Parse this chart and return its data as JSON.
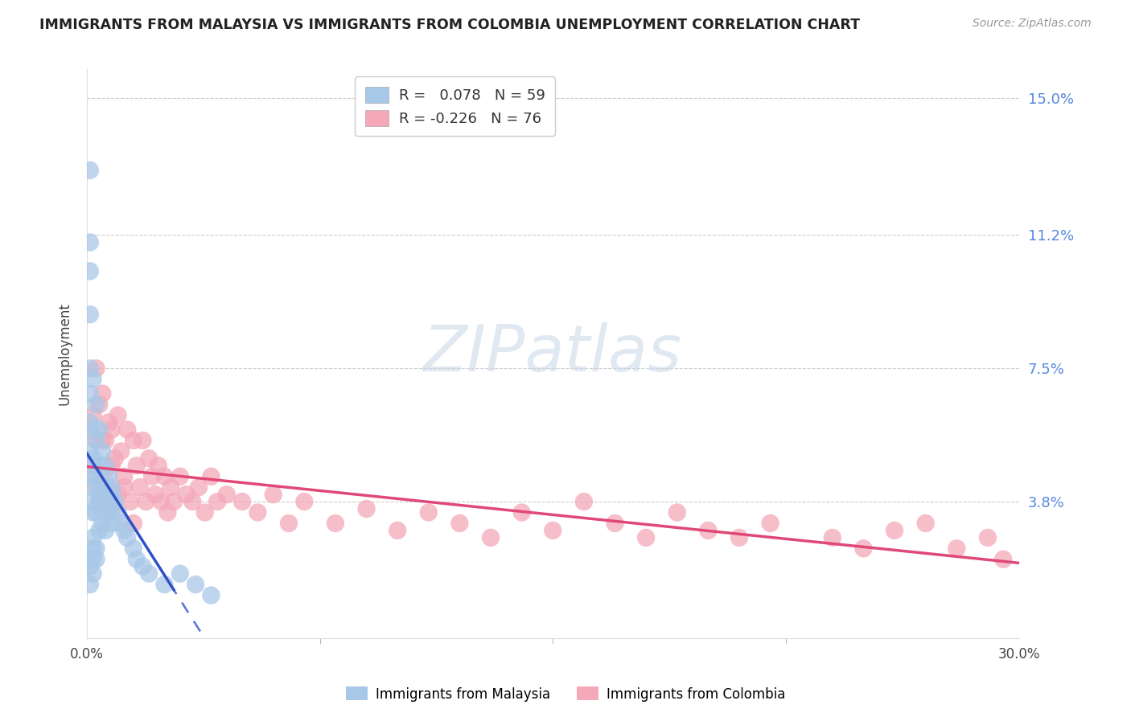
{
  "title": "IMMIGRANTS FROM MALAYSIA VS IMMIGRANTS FROM COLOMBIA UNEMPLOYMENT CORRELATION CHART",
  "source": "Source: ZipAtlas.com",
  "ylabel": "Unemployment",
  "x_min": 0.0,
  "x_max": 0.3,
  "y_min": 0.0,
  "y_max": 0.158,
  "x_tick_labels": [
    "0.0%",
    "30.0%"
  ],
  "y_tick_labels": [
    "15.0%",
    "11.2%",
    "7.5%",
    "3.8%"
  ],
  "y_tick_values": [
    0.15,
    0.112,
    0.075,
    0.038
  ],
  "watermark": "ZIPatlas",
  "malaysia_color": "#a8c8e8",
  "colombia_color": "#f4a8b8",
  "malaysia_line_color": "#3050c8",
  "colombia_line_color": "#e04878",
  "malaysia_R": 0.078,
  "malaysia_N": 59,
  "colombia_R": -0.226,
  "colombia_N": 76,
  "malaysia_x": [
    0.001,
    0.001,
    0.001,
    0.001,
    0.001,
    0.001,
    0.001,
    0.001,
    0.001,
    0.001,
    0.002,
    0.002,
    0.002,
    0.002,
    0.002,
    0.002,
    0.002,
    0.003,
    0.003,
    0.003,
    0.003,
    0.003,
    0.004,
    0.004,
    0.004,
    0.004,
    0.005,
    0.005,
    0.005,
    0.006,
    0.006,
    0.006,
    0.007,
    0.007,
    0.008,
    0.008,
    0.009,
    0.01,
    0.011,
    0.012,
    0.013,
    0.015,
    0.016,
    0.018,
    0.02,
    0.025,
    0.03,
    0.035,
    0.04,
    0.001,
    0.001,
    0.002,
    0.002,
    0.003,
    0.004,
    0.005,
    0.006,
    0.007,
    0.008
  ],
  "malaysia_y": [
    0.13,
    0.11,
    0.102,
    0.09,
    0.075,
    0.068,
    0.06,
    0.052,
    0.045,
    0.038,
    0.072,
    0.058,
    0.05,
    0.042,
    0.035,
    0.028,
    0.022,
    0.065,
    0.055,
    0.045,
    0.035,
    0.025,
    0.058,
    0.048,
    0.04,
    0.03,
    0.052,
    0.042,
    0.032,
    0.048,
    0.04,
    0.03,
    0.045,
    0.035,
    0.042,
    0.032,
    0.038,
    0.035,
    0.032,
    0.03,
    0.028,
    0.025,
    0.022,
    0.02,
    0.018,
    0.015,
    0.018,
    0.015,
    0.012,
    0.02,
    0.015,
    0.025,
    0.018,
    0.022,
    0.038,
    0.035,
    0.042,
    0.038,
    0.04
  ],
  "colombia_x": [
    0.001,
    0.002,
    0.002,
    0.003,
    0.003,
    0.003,
    0.004,
    0.004,
    0.005,
    0.005,
    0.006,
    0.006,
    0.007,
    0.007,
    0.008,
    0.008,
    0.009,
    0.01,
    0.01,
    0.011,
    0.012,
    0.013,
    0.014,
    0.015,
    0.015,
    0.016,
    0.017,
    0.018,
    0.019,
    0.02,
    0.021,
    0.022,
    0.023,
    0.024,
    0.025,
    0.026,
    0.027,
    0.028,
    0.03,
    0.032,
    0.034,
    0.036,
    0.038,
    0.04,
    0.042,
    0.045,
    0.05,
    0.055,
    0.06,
    0.065,
    0.07,
    0.08,
    0.09,
    0.1,
    0.11,
    0.12,
    0.13,
    0.14,
    0.15,
    0.16,
    0.17,
    0.18,
    0.19,
    0.2,
    0.21,
    0.22,
    0.24,
    0.25,
    0.26,
    0.27,
    0.28,
    0.29,
    0.295,
    0.005,
    0.008,
    0.012
  ],
  "colombia_y": [
    0.058,
    0.062,
    0.048,
    0.075,
    0.055,
    0.042,
    0.065,
    0.038,
    0.068,
    0.045,
    0.055,
    0.038,
    0.06,
    0.042,
    0.058,
    0.035,
    0.05,
    0.062,
    0.04,
    0.052,
    0.045,
    0.058,
    0.038,
    0.055,
    0.032,
    0.048,
    0.042,
    0.055,
    0.038,
    0.05,
    0.045,
    0.04,
    0.048,
    0.038,
    0.045,
    0.035,
    0.042,
    0.038,
    0.045,
    0.04,
    0.038,
    0.042,
    0.035,
    0.045,
    0.038,
    0.04,
    0.038,
    0.035,
    0.04,
    0.032,
    0.038,
    0.032,
    0.036,
    0.03,
    0.035,
    0.032,
    0.028,
    0.035,
    0.03,
    0.038,
    0.032,
    0.028,
    0.035,
    0.03,
    0.028,
    0.032,
    0.028,
    0.025,
    0.03,
    0.032,
    0.025,
    0.028,
    0.022,
    0.055,
    0.048,
    0.042
  ]
}
